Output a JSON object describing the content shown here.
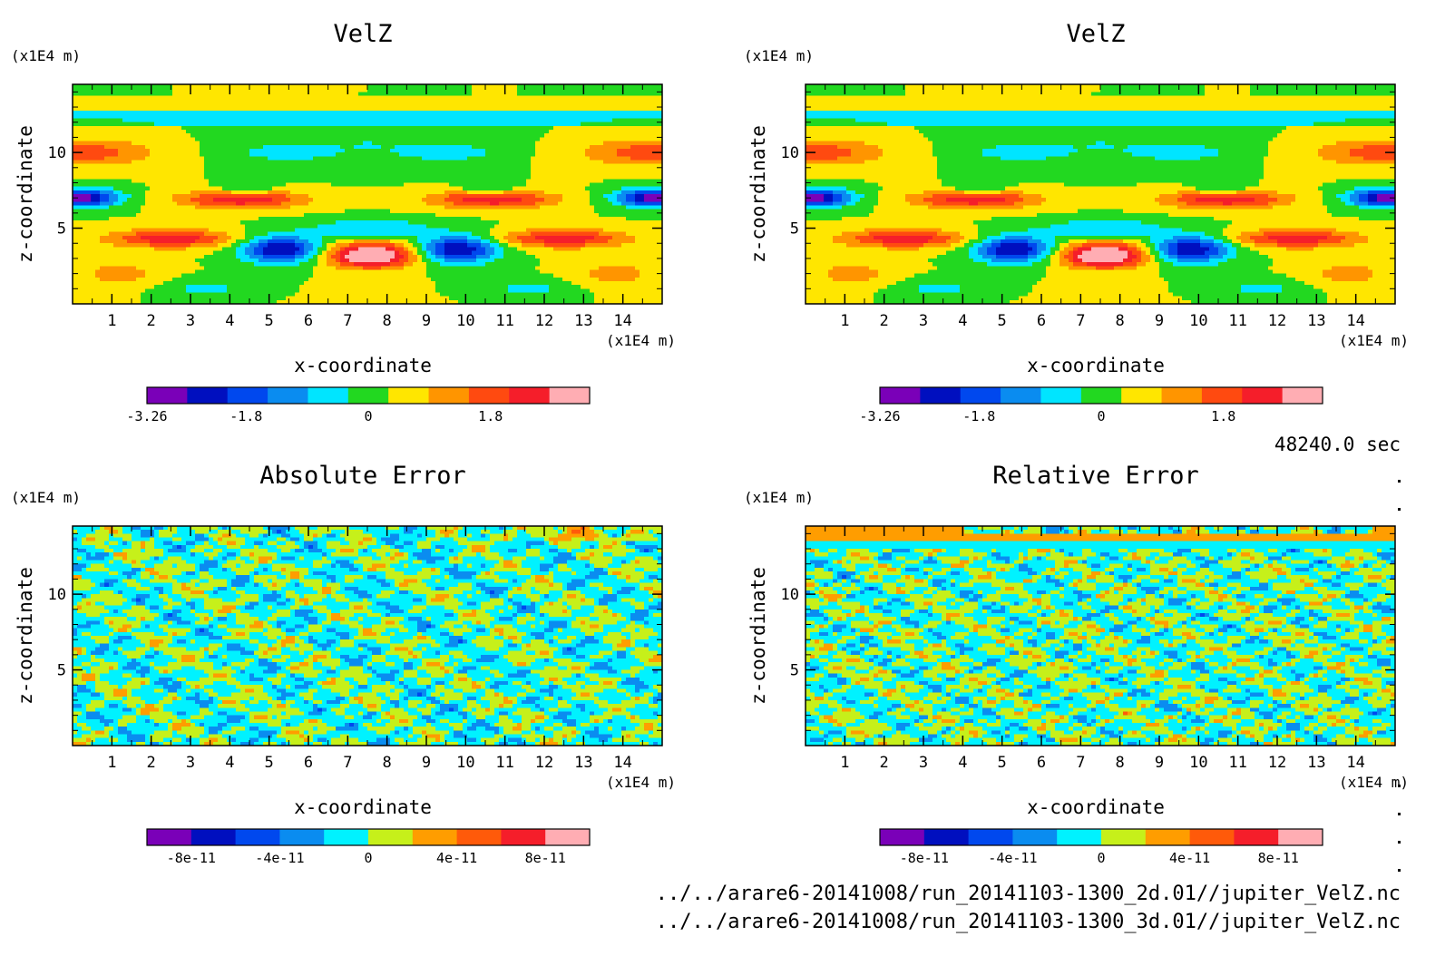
{
  "time_label": "48240.0 sec",
  "files": [
    "../../arare6-20141008/run_20141103-1300_2d.01//jupiter_VelZ.nc",
    "../../arare6-20141008/run_20141103-1300_3d.01//jupiter_VelZ.nc"
  ],
  "chart_data": [
    {
      "type": "heatmap",
      "title": "VelZ",
      "xlabel": "x-coordinate",
      "ylabel": "z-coordinate",
      "x_unit": "(x1E4 m)",
      "y_unit": "(x1E4 m)",
      "xlim": [
        0,
        15
      ],
      "ylim": [
        0,
        14.5
      ],
      "x_ticks": [
        1,
        2,
        3,
        4,
        5,
        6,
        7,
        8,
        9,
        10,
        11,
        12,
        13,
        14
      ],
      "y_ticks": [
        5,
        10
      ],
      "colorbar": {
        "colors": [
          "#7a00b8",
          "#000fbf",
          "#0048ee",
          "#0a8cf0",
          "#00e5ff",
          "#22d820",
          "#ffe600",
          "#ff9500",
          "#ff4a10",
          "#f51e2a",
          "#ffadb3"
        ],
        "labels": [
          "-3.26",
          "-1.8",
          "0",
          "1.8"
        ],
        "label_positions": [
          -3.26,
          -1.8,
          0,
          1.8
        ],
        "range": [
          -3.26,
          3.26
        ]
      },
      "field": "velz"
    },
    {
      "type": "heatmap",
      "title": "VelZ",
      "xlabel": "x-coordinate",
      "ylabel": "z-coordinate",
      "x_unit": "(x1E4 m)",
      "y_unit": "(x1E4 m)",
      "xlim": [
        0,
        15
      ],
      "ylim": [
        0,
        14.5
      ],
      "x_ticks": [
        1,
        2,
        3,
        4,
        5,
        6,
        7,
        8,
        9,
        10,
        11,
        12,
        13,
        14
      ],
      "y_ticks": [
        5,
        10
      ],
      "colorbar": {
        "colors": [
          "#7a00b8",
          "#000fbf",
          "#0048ee",
          "#0a8cf0",
          "#00e5ff",
          "#22d820",
          "#ffe600",
          "#ff9500",
          "#ff4a10",
          "#f51e2a",
          "#ffadb3"
        ],
        "labels": [
          "-3.26",
          "-1.8",
          "0",
          "1.8"
        ],
        "label_positions": [
          -3.26,
          -1.8,
          0,
          1.8
        ],
        "range": [
          -3.26,
          3.26
        ]
      },
      "field": "velz"
    },
    {
      "type": "heatmap",
      "title": "Absolute Error",
      "xlabel": "x-coordinate",
      "ylabel": "z-coordinate",
      "x_unit": "(x1E4 m)",
      "y_unit": "(x1E4 m)",
      "xlim": [
        0,
        15
      ],
      "ylim": [
        0,
        14.5
      ],
      "x_ticks": [
        1,
        2,
        3,
        4,
        5,
        6,
        7,
        8,
        9,
        10,
        11,
        12,
        13,
        14
      ],
      "y_ticks": [
        5,
        10
      ],
      "colorbar": {
        "colors": [
          "#7a00b8",
          "#000fbf",
          "#0048ee",
          "#0a8cf0",
          "#00f2ff",
          "#c6f01a",
          "#ff9d00",
          "#ff5a0a",
          "#f51e2a",
          "#ffadb3"
        ],
        "labels": [
          "-8e-11",
          "-4e-11",
          "0",
          "4e-11",
          "8e-11"
        ],
        "label_positions": [
          -8e-11,
          -4e-11,
          0,
          4e-11,
          8e-11
        ],
        "range": [
          -1e-10,
          1e-10
        ]
      },
      "field": "abs"
    },
    {
      "type": "heatmap",
      "title": "Relative Error",
      "xlabel": "x-coordinate",
      "ylabel": "z-coordinate",
      "x_unit": "(x1E4 m)",
      "y_unit": "(x1E4 m)",
      "xlim": [
        0,
        15
      ],
      "ylim": [
        0,
        14.5
      ],
      "x_ticks": [
        1,
        2,
        3,
        4,
        5,
        6,
        7,
        8,
        9,
        10,
        11,
        12,
        13,
        14
      ],
      "y_ticks": [
        5,
        10
      ],
      "colorbar": {
        "colors": [
          "#7a00b8",
          "#000fbf",
          "#0048ee",
          "#0a8cf0",
          "#00f2ff",
          "#c6f01a",
          "#ff9d00",
          "#ff5a0a",
          "#f51e2a",
          "#ffadb3"
        ],
        "labels": [
          "-8e-11",
          "-4e-11",
          "0",
          "4e-11",
          "8e-11"
        ],
        "label_positions": [
          -8e-11,
          -4e-11,
          0,
          4e-11,
          8e-11
        ],
        "range": [
          -1e-10,
          1e-10
        ]
      },
      "field": "rel"
    }
  ]
}
